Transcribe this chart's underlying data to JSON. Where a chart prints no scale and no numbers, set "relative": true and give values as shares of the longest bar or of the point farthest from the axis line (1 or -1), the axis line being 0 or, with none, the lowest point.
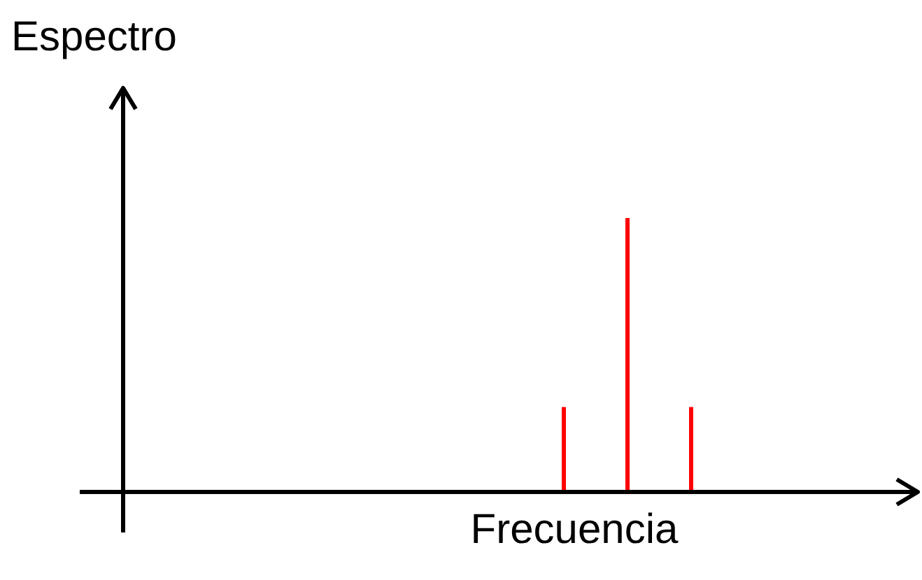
{
  "chart_data": {
    "type": "bar",
    "relative": true,
    "annotations": [
      "Espectro"
    ],
    "xlabel": "Frecuencia",
    "categories": [
      null,
      null,
      null
    ],
    "values": [
      0.31,
      1,
      0.31
    ],
    "color": "#ff0000"
  }
}
